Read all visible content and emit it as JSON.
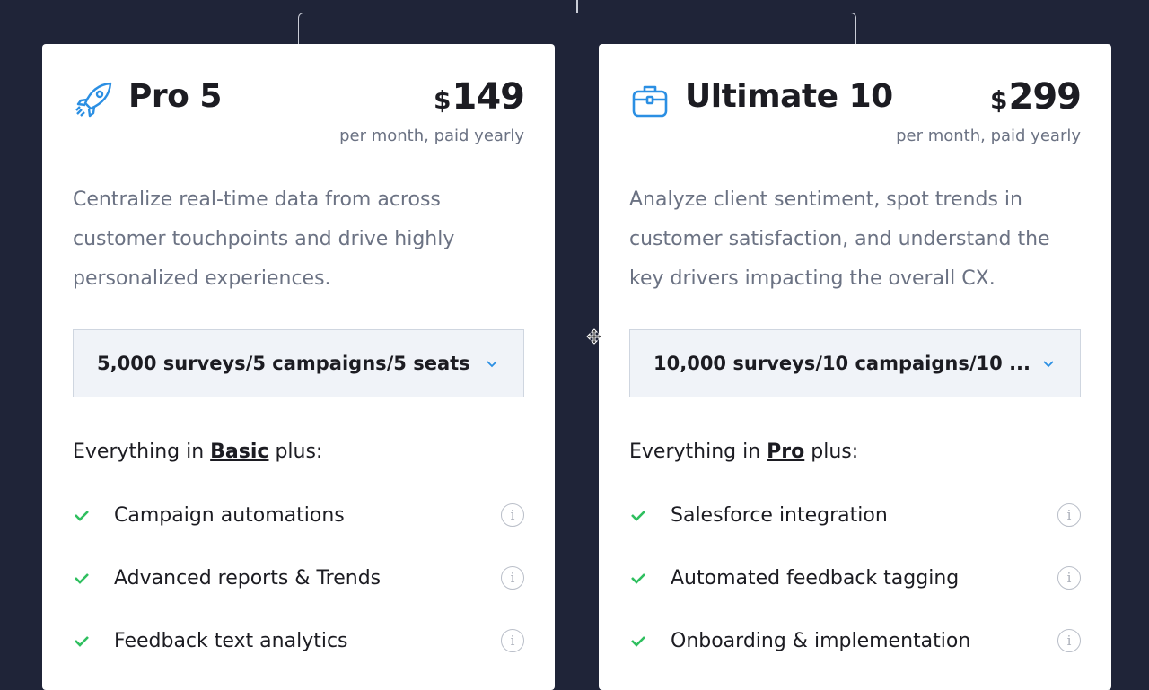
{
  "plans": [
    {
      "name": "Pro 5",
      "icon": "rocket-icon",
      "currency": "$",
      "price": "149",
      "period": "per month, paid yearly",
      "description": "Centralize real-time data from across customer touchpoints and drive highly personalized experiences.",
      "selected_option": "5,000 surveys/5 campaigns/5 seats",
      "lead_prefix": "Everything in ",
      "lead_link": "Basic",
      "lead_suffix": " plus:",
      "features": [
        "Campaign automations",
        "Advanced reports & Trends",
        "Feedback text analytics"
      ]
    },
    {
      "name": "Ultimate 10",
      "icon": "briefcase-icon",
      "currency": "$",
      "price": "299",
      "period": "per month, paid yearly",
      "description": "Analyze client sentiment, spot trends in customer satisfaction, and understand the key drivers impacting the overall CX.",
      "selected_option": "10,000 surveys/10 campaigns/10 ...",
      "lead_prefix": "Everything in ",
      "lead_link": "Pro",
      "lead_suffix": " plus:",
      "features": [
        "Salesforce integration",
        "Automated feedback tagging",
        "Onboarding & implementation"
      ]
    }
  ],
  "colors": {
    "accent": "#2b8fe3",
    "check": "#2fbf5f",
    "background": "#1f2438"
  }
}
